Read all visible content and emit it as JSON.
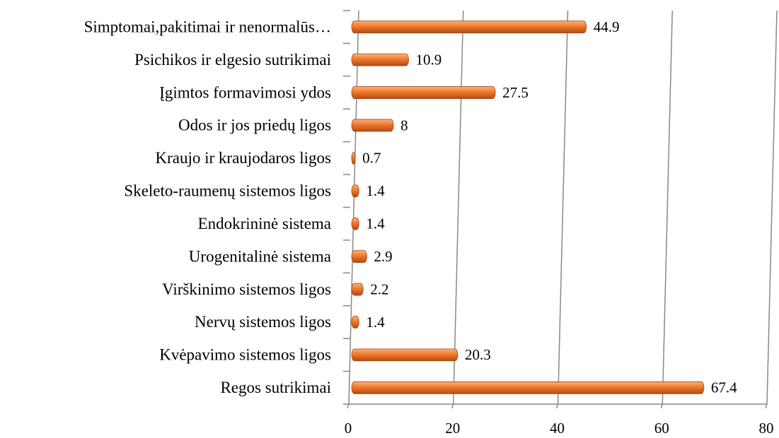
{
  "chart_data": {
    "type": "bar",
    "orientation": "horizontal",
    "categories": [
      "Simptomai,pakitimai ir nenormalūs…",
      "Psichikos ir elgesio sutrikimai",
      "Įgimtos formavimosi ydos",
      "Odos ir jos priedų ligos",
      "Kraujo ir kraujodaros ligos",
      "Skeleto-raumenų sistemos ligos",
      "Endokrininė sistema",
      "Urogenitalinė sistema",
      "Virškinimo sistemos ligos",
      "Nervų sistemos ligos",
      "Kvėpavimo sistemos ligos",
      "Regos sutrikimai"
    ],
    "values": [
      44.9,
      10.9,
      27.5,
      8,
      0.7,
      1.4,
      1.4,
      2.9,
      2.2,
      1.4,
      20.3,
      67.4
    ],
    "color": "#ee7a2c",
    "xlim": [
      0,
      80
    ],
    "xticks": [
      0,
      20,
      40,
      60,
      80
    ],
    "grid": true
  }
}
